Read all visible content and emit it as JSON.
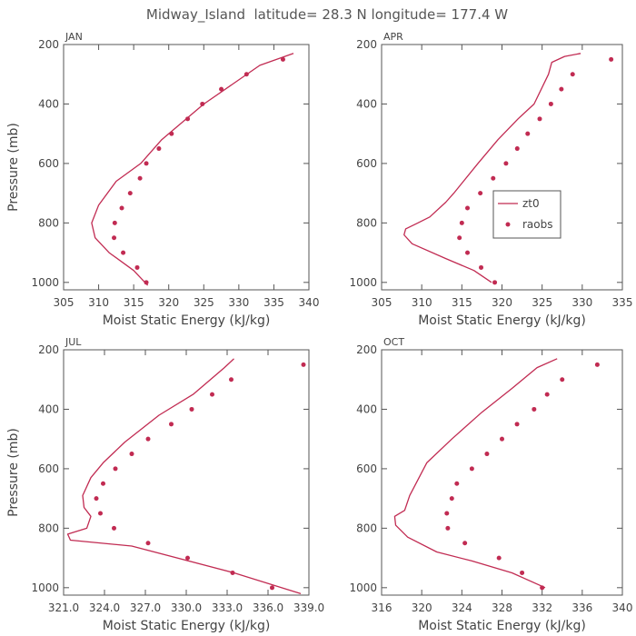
{
  "title": "Midway_Island  latitude= 28.3 N longitude= 177.4 W",
  "colors": {
    "series": "#c12b52",
    "axis": "#555555",
    "text": "#444444"
  },
  "chart_data": [
    {
      "type": "line",
      "panel": "JAN",
      "xlabel": "Moist Static Energy (kJ/kg)",
      "ylabel": "Pressure (mb)",
      "xlim": [
        305,
        340
      ],
      "ylim": [
        1025,
        200
      ],
      "xticks": [
        305,
        310,
        315,
        320,
        325,
        330,
        335,
        340
      ],
      "xtick_labels": [
        "305",
        "310",
        "315",
        "320",
        "325",
        "330",
        "335",
        "340"
      ],
      "yticks": [
        200,
        400,
        600,
        800,
        1000
      ],
      "ytick_labels": [
        "200",
        "400",
        "600",
        "800",
        "1000"
      ],
      "series": [
        {
          "name": "zt0",
          "kind": "line",
          "x": [
            337.8,
            333.0,
            325.0,
            319.0,
            316.0,
            312.5,
            310.0,
            309.0,
            309.5,
            311.5,
            315.0,
            317.0
          ],
          "y": [
            230,
            270,
            400,
            520,
            600,
            660,
            740,
            800,
            850,
            900,
            960,
            1010
          ]
        },
        {
          "name": "raobs",
          "kind": "marker",
          "x": [
            336.3,
            331.1,
            327.5,
            324.8,
            322.7,
            320.4,
            318.6,
            316.8,
            315.9,
            314.5,
            313.3,
            312.3,
            312.2,
            313.5,
            315.5,
            316.8
          ],
          "y": [
            250,
            300,
            350,
            400,
            450,
            500,
            550,
            600,
            650,
            700,
            750,
            800,
            850,
            900,
            950,
            1000
          ]
        }
      ]
    },
    {
      "type": "line",
      "panel": "APR",
      "xlabel": "Moist Static Energy (kJ/kg)",
      "ylabel": "",
      "xlim": [
        305,
        335
      ],
      "ylim": [
        1025,
        200
      ],
      "xticks": [
        305,
        310,
        315,
        320,
        325,
        330,
        335
      ],
      "xtick_labels": [
        "305",
        "310",
        "315",
        "320",
        "325",
        "330",
        "335"
      ],
      "yticks": [
        200,
        400,
        600,
        800,
        1000
      ],
      "ytick_labels": [
        "200",
        "400",
        "600",
        "800",
        "1000"
      ],
      "legend": {
        "position": "right",
        "entries": [
          "zt0",
          "raobs"
        ]
      },
      "series": [
        {
          "name": "zt0",
          "kind": "line",
          "x": [
            329.8,
            327.8,
            326.2,
            325.8,
            324.0,
            322.0,
            319.5,
            317.0,
            314.0,
            313.0,
            311.0,
            309.5,
            308.0,
            307.8,
            308.8,
            313.0,
            316.5,
            318.7
          ],
          "y": [
            230,
            240,
            260,
            300,
            400,
            450,
            520,
            600,
            700,
            730,
            780,
            800,
            820,
            840,
            870,
            920,
            960,
            1000
          ]
        },
        {
          "name": "raobs",
          "kind": "marker",
          "x": [
            333.6,
            328.8,
            327.4,
            326.1,
            324.7,
            323.2,
            321.9,
            320.5,
            318.9,
            317.3,
            315.7,
            315.0,
            314.7,
            315.7,
            317.4,
            319.1
          ],
          "y": [
            250,
            300,
            350,
            400,
            450,
            500,
            550,
            600,
            650,
            700,
            750,
            800,
            850,
            900,
            950,
            1000
          ]
        }
      ]
    },
    {
      "type": "line",
      "panel": "JUL",
      "xlabel": "Moist Static Energy (kJ/kg)",
      "ylabel": "Pressure (mb)",
      "xlim": [
        321.0,
        339.0
      ],
      "ylim": [
        1025,
        200
      ],
      "xticks": [
        321,
        324,
        327,
        330,
        333,
        336,
        339
      ],
      "xtick_labels": [
        "321.0",
        "324.0",
        "327.0",
        "330.0",
        "333.0",
        "336.0",
        "339.0"
      ],
      "yticks": [
        200,
        400,
        600,
        800,
        1000
      ],
      "ytick_labels": [
        "200",
        "400",
        "600",
        "800",
        "1000"
      ],
      "series": [
        {
          "name": "zt0",
          "kind": "line",
          "x": [
            333.5,
            332.8,
            330.5,
            328.0,
            325.5,
            323.9,
            323.0,
            322.4,
            322.5,
            323.0,
            322.7,
            321.3,
            321.5,
            326.0,
            333.5,
            338.4
          ],
          "y": [
            230,
            260,
            350,
            420,
            510,
            580,
            630,
            690,
            730,
            760,
            800,
            820,
            840,
            860,
            950,
            1020
          ]
        },
        {
          "name": "raobs",
          "kind": "marker",
          "x": [
            338.6,
            333.3,
            331.9,
            330.4,
            328.9,
            327.2,
            326.0,
            324.8,
            323.9,
            323.4,
            323.7,
            324.7,
            327.2,
            330.1,
            333.4,
            336.3
          ],
          "y": [
            250,
            300,
            350,
            400,
            450,
            500,
            550,
            600,
            650,
            700,
            750,
            800,
            850,
            900,
            950,
            1000
          ]
        }
      ]
    },
    {
      "type": "line",
      "panel": "OCT",
      "xlabel": "Moist Static Energy (kJ/kg)",
      "ylabel": "",
      "xlim": [
        316,
        340
      ],
      "ylim": [
        1025,
        200
      ],
      "xticks": [
        316,
        320,
        324,
        328,
        332,
        336,
        340
      ],
      "xtick_labels": [
        "316",
        "320",
        "324",
        "328",
        "332",
        "336",
        "340"
      ],
      "yticks": [
        200,
        400,
        600,
        800,
        1000
      ],
      "ytick_labels": [
        "200",
        "400",
        "600",
        "800",
        "1000"
      ],
      "series": [
        {
          "name": "zt0",
          "kind": "line",
          "x": [
            333.5,
            331.5,
            329.0,
            326.0,
            323.0,
            320.5,
            318.8,
            318.3,
            317.3,
            317.4,
            318.6,
            321.5,
            325.0,
            329.0,
            332.3
          ],
          "y": [
            230,
            260,
            330,
            410,
            500,
            580,
            690,
            740,
            760,
            790,
            830,
            880,
            910,
            950,
            1000
          ]
        },
        {
          "name": "raobs",
          "kind": "marker",
          "x": [
            337.5,
            334.0,
            332.5,
            331.2,
            329.5,
            328.0,
            326.5,
            325.0,
            323.5,
            323.0,
            322.5,
            322.6,
            324.3,
            327.7,
            330.0,
            332.0
          ],
          "y": [
            250,
            300,
            350,
            400,
            450,
            500,
            550,
            600,
            650,
            700,
            750,
            800,
            850,
            900,
            950,
            1000
          ]
        }
      ]
    }
  ]
}
